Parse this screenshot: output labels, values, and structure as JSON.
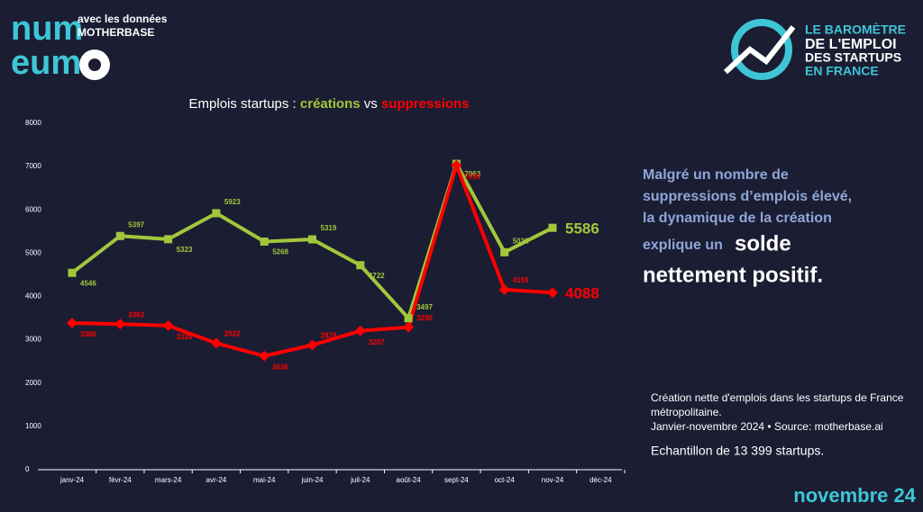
{
  "chart_data": {
    "type": "line",
    "title": [
      "Emplois startups :",
      "créations",
      "vs",
      "suppressions"
    ],
    "categories": [
      "janv-24",
      "févr-24",
      "mars-24",
      "avr-24",
      "mai-24",
      "juin-24",
      "juil-24",
      "août-24",
      "sept-24",
      "oct-24",
      "nov-24",
      "déc-24"
    ],
    "series": [
      {
        "name": "créations",
        "color": "#a2c73b",
        "marker": "square",
        "values": [
          4546,
          5397,
          5323,
          5923,
          5268,
          5319,
          4722,
          3497,
          7063,
          5021,
          5586,
          null
        ]
      },
      {
        "name": "suppressions",
        "color": "#ff0000",
        "marker": "diamond",
        "values": [
          3386,
          3363,
          3328,
          2922,
          2626,
          2878,
          3207,
          3290,
          7030,
          4159,
          4088,
          null
        ]
      }
    ],
    "ylim": [
      0,
      8000
    ],
    "yticks": [
      0,
      1000,
      2000,
      3000,
      4000,
      5000,
      6000,
      7000,
      8000
    ]
  },
  "header": {
    "logo": [
      "num",
      "eum"
    ],
    "partner": [
      "avec les données",
      "MOTHERBASE"
    ],
    "barometer": [
      "LE BAROMÈTRE",
      "DE L'EMPLOI",
      "DES STARTUPS",
      "EN FRANCE"
    ]
  },
  "panel": {
    "lead": [
      "Malgré un nombre de",
      "suppressions d’emplois élevé,",
      "la dynamique de la création"
    ],
    "lead_end": "explique un",
    "highlight": [
      "solde",
      "nettement positif."
    ],
    "notes": [
      "Création nette d'emplois dans les startups de France",
      "métropolitaine.",
      "Janvier-novembre 2024 • Source: motherbase.ai"
    ],
    "sample": "Echantillon de 13 399 startups.",
    "period": "novembre 24"
  }
}
